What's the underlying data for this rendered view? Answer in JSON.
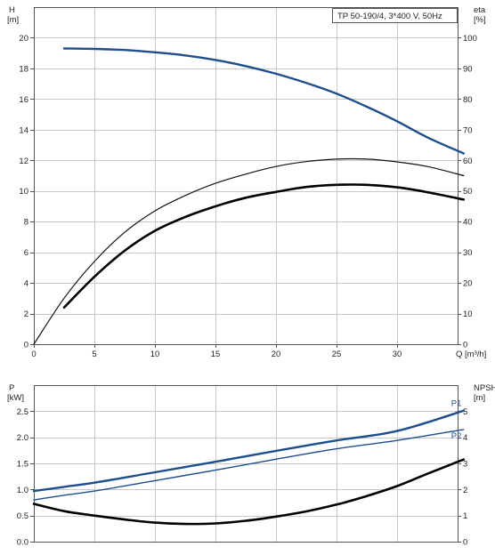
{
  "chart_data": [
    {
      "type": "line",
      "title": "TP 50-190/4, 3*400 V, 50Hz",
      "xlabel": "Q [m³/h]",
      "xlim": [
        0,
        35
      ],
      "x_ticks": [
        0,
        5,
        10,
        15,
        20,
        25,
        30
      ],
      "left_axis": {
        "label_line1": "H",
        "label_line2": "[m]",
        "ylim": [
          0,
          22
        ],
        "ticks": [
          0,
          2,
          4,
          6,
          8,
          10,
          12,
          14,
          16,
          18,
          20
        ]
      },
      "right_axis": {
        "label_line1": "eta",
        "label_line2": "[%]",
        "ylim": [
          0,
          110
        ],
        "ticks": [
          0,
          10,
          20,
          30,
          40,
          50,
          60,
          70,
          80,
          90,
          100
        ]
      },
      "grid": true,
      "series": [
        {
          "axis": "left",
          "color": "#1f4e8c",
          "width": 2.4,
          "x": [
            2.5,
            5,
            7.5,
            10,
            12.5,
            15,
            17.5,
            20,
            22.5,
            25,
            27.5,
            30,
            32.5,
            35.5
          ],
          "y": [
            19.3,
            19.27,
            19.2,
            19.05,
            18.85,
            18.55,
            18.15,
            17.65,
            17.05,
            16.35,
            15.5,
            14.55,
            13.5,
            12.45
          ]
        },
        {
          "axis": "right",
          "color": "#111111",
          "width": 1.2,
          "x": [
            0,
            2.5,
            5,
            7.5,
            10,
            12.5,
            15,
            17.5,
            20,
            22.5,
            25,
            27.5,
            30,
            32.5,
            35.5
          ],
          "y": [
            0,
            15,
            27,
            36.5,
            43.5,
            48.5,
            52.5,
            55.5,
            58,
            59.6,
            60.4,
            60.4,
            59.5,
            58,
            55
          ]
        },
        {
          "axis": "right",
          "color": "#000000",
          "width": 2.6,
          "x": [
            2.5,
            5,
            7.5,
            10,
            12.5,
            15,
            17.5,
            20,
            22.5,
            25,
            27.5,
            30,
            32.5,
            35.5
          ],
          "y": [
            12,
            22,
            30.5,
            37,
            41.5,
            45,
            47.8,
            49.7,
            51.3,
            52,
            52,
            51.2,
            49.6,
            47.2
          ]
        }
      ]
    },
    {
      "type": "line",
      "xlim": [
        0,
        35
      ],
      "left_axis": {
        "label_line1": "P",
        "label_line2": "[kW]",
        "ylim": [
          0,
          3
        ],
        "ticks": [
          0.0,
          0.5,
          1.0,
          1.5,
          2.0,
          2.5
        ],
        "tick_labels": [
          "0.0",
          "0.5",
          "1.0",
          "1.5",
          "2.0",
          "2.5"
        ]
      },
      "right_axis": {
        "label_line1": "NPSH",
        "label_line2": "[m]",
        "ylim": [
          0,
          6
        ],
        "ticks": [
          0,
          1,
          2,
          3,
          4,
          5
        ]
      },
      "grid": true,
      "series": [
        {
          "name": "P1",
          "axis": "left",
          "color": "#1f4e8c",
          "width": 2.4,
          "x": [
            0,
            2.5,
            5,
            10,
            15,
            20,
            25,
            30,
            35.5
          ],
          "y": [
            0.97,
            1.05,
            1.13,
            1.33,
            1.53,
            1.74,
            1.94,
            2.12,
            2.51
          ]
        },
        {
          "name": "P2",
          "axis": "left",
          "color": "#1f4e8c",
          "width": 1.4,
          "x": [
            0,
            2.5,
            5,
            10,
            15,
            20,
            25,
            30,
            35.5
          ],
          "y": [
            0.8,
            0.89,
            0.97,
            1.17,
            1.37,
            1.58,
            1.78,
            1.94,
            2.15
          ]
        },
        {
          "axis": "right",
          "color": "#000000",
          "width": 2.6,
          "x": [
            0,
            2.5,
            5,
            7.5,
            10,
            12.5,
            15,
            17.5,
            20,
            22.5,
            25,
            27.5,
            30,
            32.5,
            35.5
          ],
          "y": [
            1.45,
            1.17,
            1.0,
            0.85,
            0.73,
            0.68,
            0.7,
            0.8,
            0.96,
            1.16,
            1.42,
            1.75,
            2.13,
            2.6,
            3.15
          ]
        }
      ]
    }
  ]
}
